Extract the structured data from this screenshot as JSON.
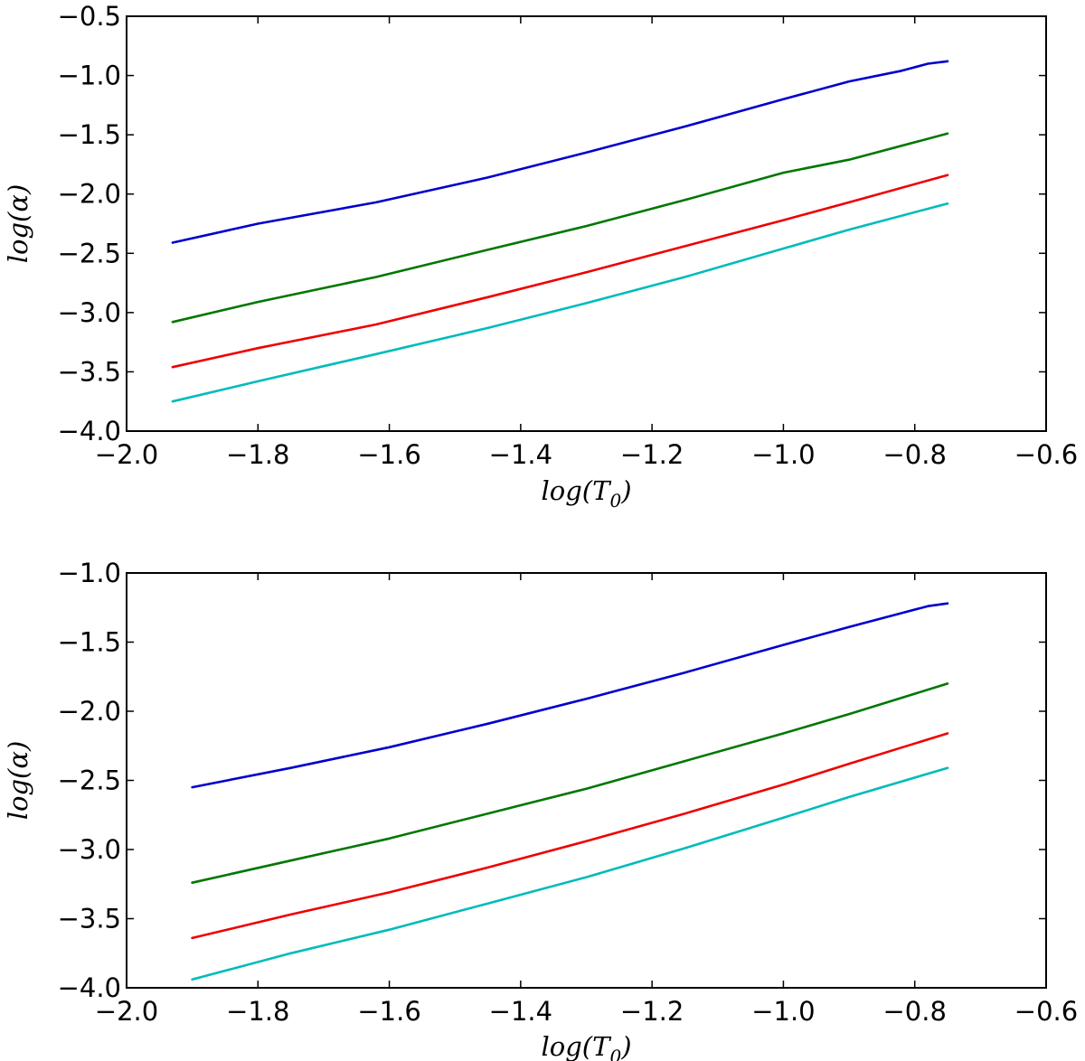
{
  "chart_data": [
    {
      "type": "line",
      "title": "",
      "xlabel": "log(T_0)",
      "ylabel": "log(α)",
      "xlim": [
        -2.0,
        -0.6
      ],
      "ylim": [
        -4.0,
        -0.5
      ],
      "xticks": [
        -2.0,
        -1.8,
        -1.6,
        -1.4,
        -1.2,
        -1.0,
        -0.8,
        -0.6
      ],
      "yticks": [
        -4.0,
        -3.5,
        -3.0,
        -2.5,
        -2.0,
        -1.5,
        -1.0,
        -0.5
      ],
      "xtick_labels": [
        "−2.0",
        "−1.8",
        "−1.6",
        "−1.4",
        "−1.2",
        "−1.0",
        "−0.8",
        "−0.6"
      ],
      "ytick_labels": [
        "−4.0",
        "−3.5",
        "−3.0",
        "−2.5",
        "−2.0",
        "−1.5",
        "−1.0",
        "−0.5"
      ],
      "grid": false,
      "series": [
        {
          "color": "#0000cc",
          "x": [
            -1.93,
            -1.8,
            -1.62,
            -1.45,
            -1.3,
            -1.15,
            -1.0,
            -0.9,
            -0.82,
            -0.78,
            -0.75
          ],
          "y": [
            -2.41,
            -2.25,
            -2.07,
            -1.86,
            -1.65,
            -1.43,
            -1.2,
            -1.05,
            -0.96,
            -0.9,
            -0.88
          ]
        },
        {
          "color": "#007700",
          "x": [
            -1.93,
            -1.8,
            -1.62,
            -1.45,
            -1.3,
            -1.15,
            -1.0,
            -0.9,
            -0.75
          ],
          "y": [
            -3.08,
            -2.91,
            -2.7,
            -2.47,
            -2.27,
            -2.05,
            -1.82,
            -1.71,
            -1.49
          ]
        },
        {
          "color": "#ee0000",
          "x": [
            -1.93,
            -1.8,
            -1.62,
            -1.45,
            -1.3,
            -1.15,
            -1.0,
            -0.9,
            -0.75
          ],
          "y": [
            -3.46,
            -3.3,
            -3.1,
            -2.87,
            -2.66,
            -2.44,
            -2.22,
            -2.07,
            -1.84
          ]
        },
        {
          "color": "#00bbbb",
          "x": [
            -1.93,
            -1.8,
            -1.62,
            -1.45,
            -1.3,
            -1.15,
            -1.0,
            -0.9,
            -0.75
          ],
          "y": [
            -3.75,
            -3.58,
            -3.35,
            -3.13,
            -2.92,
            -2.7,
            -2.46,
            -2.3,
            -2.08
          ]
        }
      ]
    },
    {
      "type": "line",
      "title": "",
      "xlabel": "log(T_0)",
      "ylabel": "log(α)",
      "xlim": [
        -2.0,
        -0.6
      ],
      "ylim": [
        -4.0,
        -1.0
      ],
      "xticks": [
        -2.0,
        -1.8,
        -1.6,
        -1.4,
        -1.2,
        -1.0,
        -0.8,
        -0.6
      ],
      "yticks": [
        -4.0,
        -3.5,
        -3.0,
        -2.5,
        -2.0,
        -1.5,
        -1.0
      ],
      "xtick_labels": [
        "−2.0",
        "−1.8",
        "−1.6",
        "−1.4",
        "−1.2",
        "−1.0",
        "−0.8",
        "−0.6"
      ],
      "ytick_labels": [
        "−4.0",
        "−3.5",
        "−3.0",
        "−2.5",
        "−2.0",
        "−1.5",
        "−1.0"
      ],
      "grid": false,
      "series": [
        {
          "color": "#0000cc",
          "x": [
            -1.9,
            -1.75,
            -1.6,
            -1.45,
            -1.3,
            -1.15,
            -1.0,
            -0.9,
            -0.82,
            -0.78,
            -0.75
          ],
          "y": [
            -2.55,
            -2.41,
            -2.26,
            -2.09,
            -1.91,
            -1.72,
            -1.52,
            -1.39,
            -1.29,
            -1.24,
            -1.22
          ]
        },
        {
          "color": "#007700",
          "x": [
            -1.9,
            -1.75,
            -1.6,
            -1.45,
            -1.3,
            -1.15,
            -1.0,
            -0.9,
            -0.75
          ],
          "y": [
            -3.24,
            -3.08,
            -2.92,
            -2.74,
            -2.56,
            -2.36,
            -2.16,
            -2.02,
            -1.8
          ]
        },
        {
          "color": "#ee0000",
          "x": [
            -1.9,
            -1.75,
            -1.6,
            -1.45,
            -1.3,
            -1.15,
            -1.0,
            -0.9,
            -0.75
          ],
          "y": [
            -3.64,
            -3.47,
            -3.31,
            -3.13,
            -2.94,
            -2.74,
            -2.53,
            -2.38,
            -2.16
          ]
        },
        {
          "color": "#00bbbb",
          "x": [
            -1.9,
            -1.75,
            -1.6,
            -1.45,
            -1.3,
            -1.15,
            -1.0,
            -0.9,
            -0.75
          ],
          "y": [
            -3.94,
            -3.75,
            -3.58,
            -3.39,
            -3.2,
            -2.99,
            -2.77,
            -2.62,
            -2.41
          ]
        }
      ]
    }
  ]
}
